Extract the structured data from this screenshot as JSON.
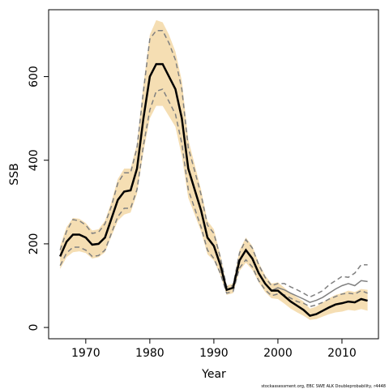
{
  "chart_data": {
    "type": "line",
    "x_label": "Year",
    "y_label": "SSB",
    "footnote": "stockassessment.org, EBC SWE ALK Doubleprobability, r4448",
    "x": [
      1966,
      1967,
      1968,
      1969,
      1970,
      1971,
      1972,
      1973,
      1974,
      1975,
      1976,
      1977,
      1978,
      1979,
      1980,
      1981,
      1982,
      1983,
      1984,
      1985,
      1986,
      1987,
      1988,
      1989,
      1990,
      1991,
      1992,
      1993,
      1994,
      1995,
      1996,
      1997,
      1998,
      1999,
      2000,
      2001,
      2002,
      2003,
      2004,
      2005,
      2006,
      2007,
      2008,
      2009,
      2010,
      2011,
      2012,
      2013,
      2014
    ],
    "band": {
      "color": "#f5deb3",
      "upper": [
        195,
        240,
        262,
        260,
        250,
        232,
        235,
        255,
        300,
        355,
        380,
        380,
        440,
        580,
        700,
        735,
        730,
        700,
        660,
        590,
        450,
        390,
        330,
        255,
        235,
        175,
        100,
        105,
        185,
        215,
        195,
        155,
        125,
        105,
        108,
        95,
        82,
        72,
        62,
        45,
        50,
        60,
        70,
        78,
        82,
        88,
        85,
        92,
        90
      ],
      "lower": [
        140,
        168,
        180,
        182,
        178,
        165,
        168,
        180,
        218,
        255,
        270,
        275,
        320,
        420,
        500,
        530,
        530,
        505,
        480,
        410,
        310,
        270,
        230,
        175,
        160,
        125,
        78,
        82,
        135,
        155,
        138,
        108,
        85,
        70,
        68,
        57,
        45,
        36,
        28,
        18,
        20,
        26,
        32,
        36,
        38,
        42,
        40,
        44,
        40
      ]
    },
    "series": [
      {
        "color": "#808080",
        "dashed": true,
        "values": [
          185,
          230,
          258,
          255,
          245,
          225,
          228,
          248,
          290,
          345,
          370,
          370,
          430,
          565,
          690,
          710,
          710,
          680,
          640,
          570,
          430,
          375,
          318,
          245,
          225,
          168,
          97,
          100,
          178,
          210,
          190,
          150,
          120,
          100,
          105,
          105,
          97,
          90,
          82,
          73,
          80,
          88,
          102,
          112,
          122,
          120,
          130,
          150,
          150
        ]
      },
      {
        "color": "#808080",
        "dashed": true,
        "values": [
          148,
          178,
          192,
          192,
          185,
          170,
          172,
          185,
          225,
          265,
          285,
          285,
          330,
          435,
          520,
          565,
          570,
          540,
          510,
          440,
          330,
          285,
          240,
          185,
          165,
          130,
          82,
          86,
          142,
          162,
          145,
          112,
          90,
          76,
          80,
          78,
          70,
          62,
          58,
          50,
          54,
          60,
          68,
          74,
          80,
          82,
          80,
          88,
          82
        ]
      },
      {
        "color": "#808080",
        "dashed": false,
        "values": [
          170,
          205,
          222,
          222,
          215,
          198,
          200,
          215,
          260,
          305,
          325,
          328,
          380,
          500,
          600,
          630,
          630,
          600,
          570,
          500,
          380,
          330,
          280,
          215,
          195,
          150,
          90,
          95,
          160,
          185,
          165,
          130,
          105,
          88,
          95,
          90,
          82,
          75,
          68,
          60,
          65,
          72,
          82,
          92,
          100,
          105,
          100,
          112,
          110
        ]
      },
      {
        "color": "#000000",
        "dashed": false,
        "values": [
          170,
          205,
          222,
          222,
          215,
          198,
          200,
          215,
          260,
          305,
          325,
          328,
          380,
          500,
          600,
          630,
          630,
          600,
          570,
          500,
          380,
          330,
          280,
          215,
          195,
          150,
          90,
          95,
          160,
          185,
          165,
          130,
          105,
          88,
          88,
          75,
          62,
          52,
          42,
          28,
          32,
          40,
          48,
          55,
          58,
          62,
          60,
          68,
          64
        ]
      }
    ],
    "xlim": [
      1964.2,
      2015.7
    ],
    "ylim": [
      -27,
      760
    ],
    "xticks": [
      1970,
      1980,
      1990,
      2000,
      2010
    ],
    "yticks": [
      0,
      200,
      400,
      600
    ]
  }
}
